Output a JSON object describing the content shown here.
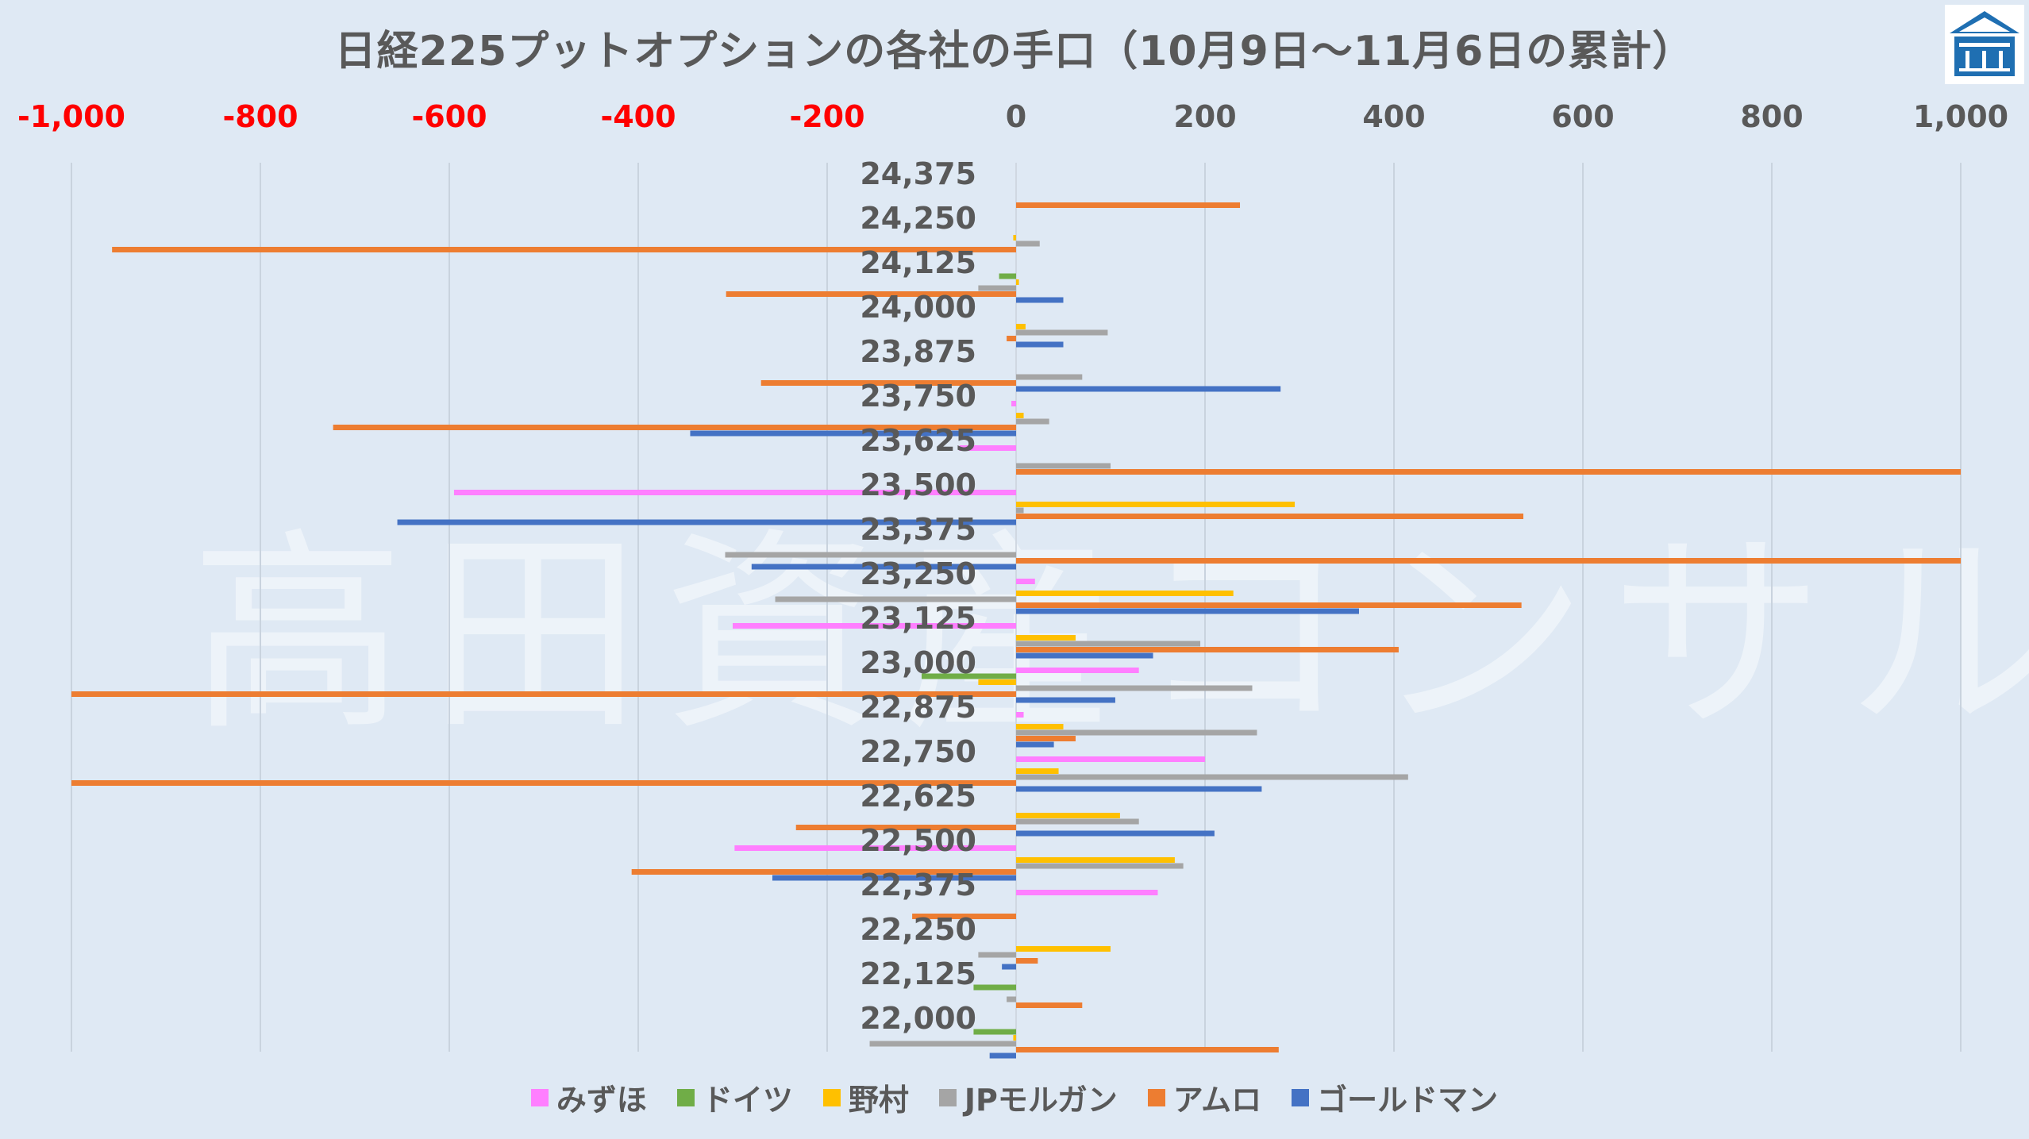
{
  "title": "日経225プットオプションの各社の手口（10月9日～11月6日の累計）",
  "watermark": "高田資産コンサル",
  "chart_data": {
    "type": "bar",
    "orientation": "horizontal",
    "title": "日経225プットオプションの各社の手口（10月9日～11月6日の累計）",
    "xlim": [
      -1000,
      1000
    ],
    "x_ticks": [
      "-1,000",
      "-800",
      "-600",
      "-400",
      "-200",
      "0",
      "200",
      "400",
      "600",
      "800",
      "1,000"
    ],
    "x_tick_values": [
      -1000,
      -800,
      -600,
      -400,
      -200,
      0,
      200,
      400,
      600,
      800,
      1000
    ],
    "negative_tick_color": "#ff0000",
    "grid": true,
    "legend_position": "bottom",
    "categories": [
      "24,375",
      "24,250",
      "24,125",
      "24,000",
      "23,875",
      "23,750",
      "23,625",
      "23,500",
      "23,375",
      "23,250",
      "23,125",
      "23,000",
      "22,875",
      "22,750",
      "22,625",
      "22,500",
      "22,375",
      "22,250",
      "22,125",
      "22,000"
    ],
    "series": [
      {
        "name": "みずほ",
        "color": "#ff7fff",
        "values": [
          0,
          0,
          0,
          0,
          0,
          -5,
          -60,
          -595,
          0,
          20,
          -300,
          130,
          8,
          200,
          0,
          -298,
          150,
          0,
          0,
          0
        ]
      },
      {
        "name": "ドイツ",
        "color": "#70ad47",
        "values": [
          0,
          0,
          -18,
          0,
          0,
          0,
          0,
          0,
          0,
          0,
          0,
          -100,
          0,
          0,
          0,
          0,
          0,
          0,
          -45,
          -45
        ]
      },
      {
        "name": "野村",
        "color": "#ffc000",
        "values": [
          0,
          -3,
          3,
          10,
          0,
          8,
          0,
          295,
          0,
          230,
          63,
          -40,
          50,
          45,
          110,
          168,
          0,
          100,
          0,
          -3
        ]
      },
      {
        "name": "JPモルガン",
        "color": "#a5a5a5",
        "values": [
          0,
          25,
          -40,
          97,
          70,
          35,
          100,
          8,
          -308,
          -255,
          195,
          250,
          255,
          415,
          130,
          177,
          0,
          -40,
          -10,
          -155
        ]
      },
      {
        "name": "アムロ",
        "color": "#ed7d31",
        "values": [
          237,
          -957,
          -307,
          -10,
          -270,
          -723,
          1000,
          537,
          1000,
          535,
          405,
          -1000,
          63,
          -1000,
          -233,
          -407,
          -110,
          23,
          70,
          278
        ]
      },
      {
        "name": "ゴールドマン",
        "color": "#4472c4",
        "values": [
          0,
          0,
          50,
          50,
          280,
          -345,
          0,
          -655,
          -280,
          363,
          145,
          105,
          40,
          260,
          210,
          -258,
          0,
          -15,
          0,
          -28
        ]
      }
    ]
  }
}
